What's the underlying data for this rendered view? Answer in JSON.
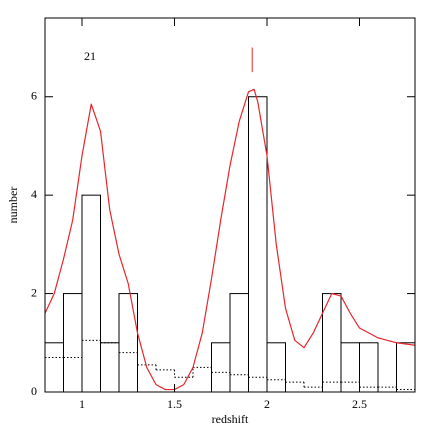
{
  "chart_data": {
    "type": "histogram",
    "xlabel": "redshift",
    "ylabel": "number",
    "annotation": "21",
    "xlim": [
      0.8,
      2.8
    ],
    "ylim": [
      0,
      7.6
    ],
    "xticks": [
      1,
      1.5,
      2,
      2.5
    ],
    "yticks": [
      0,
      2,
      4,
      6
    ],
    "bins": [
      0.8,
      0.9,
      1.0,
      1.1,
      1.2,
      1.3,
      1.4,
      1.5,
      1.6,
      1.7,
      1.8,
      1.9,
      2.0,
      2.1,
      2.2,
      2.3,
      2.4,
      2.5,
      2.6,
      2.7,
      2.8
    ],
    "counts": [
      1,
      2,
      4,
      1,
      2,
      0,
      0,
      0,
      0,
      1,
      2,
      6,
      1,
      0,
      0,
      2,
      1,
      1,
      0,
      1
    ],
    "color": "#000000",
    "dotted_counts": [
      0.7,
      0.7,
      1.05,
      1.0,
      0.8,
      0.55,
      0.45,
      0.3,
      0.5,
      0.4,
      0.35,
      0.3,
      0.25,
      0.2,
      0.1,
      0.2,
      0.2,
      0.1,
      0.1,
      0.05
    ],
    "curve": {
      "color": "#e8262a",
      "x": [
        0.8,
        0.85,
        0.9,
        0.95,
        1.0,
        1.05,
        1.1,
        1.15,
        1.2,
        1.25,
        1.3,
        1.35,
        1.4,
        1.45,
        1.5,
        1.55,
        1.6,
        1.65,
        1.7,
        1.75,
        1.8,
        1.85,
        1.9,
        1.93,
        1.95,
        2.0,
        2.05,
        2.1,
        2.15,
        2.2,
        2.25,
        2.3,
        2.35,
        2.4,
        2.45,
        2.5,
        2.6,
        2.7,
        2.8
      ],
      "y": [
        1.6,
        2.0,
        2.7,
        3.5,
        4.8,
        5.85,
        5.3,
        3.7,
        2.8,
        2.2,
        1.2,
        0.5,
        0.15,
        0.05,
        0.05,
        0.15,
        0.5,
        1.2,
        2.3,
        3.5,
        4.6,
        5.5,
        6.1,
        6.15,
        5.9,
        4.8,
        3.0,
        1.7,
        1.05,
        0.9,
        1.2,
        1.6,
        2.0,
        1.95,
        1.6,
        1.3,
        1.1,
        1.0,
        0.95
      ]
    },
    "marker": {
      "x": 1.92,
      "y": [
        6.5,
        7.0
      ]
    }
  }
}
